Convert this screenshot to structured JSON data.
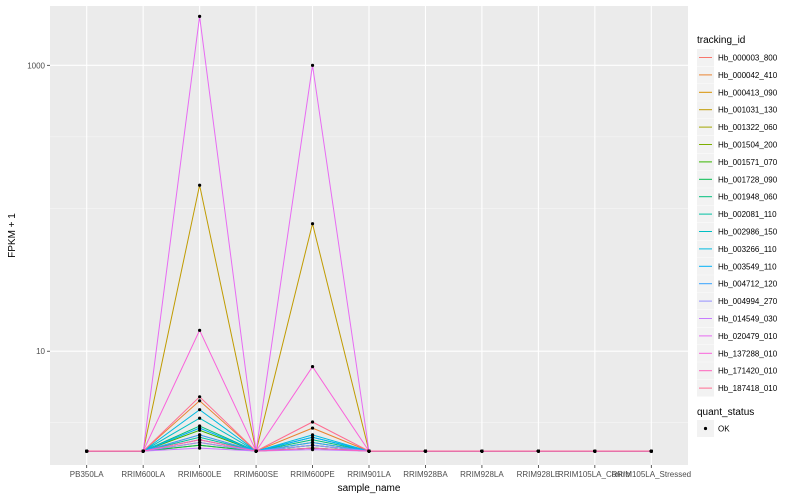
{
  "chart_data": {
    "type": "line",
    "title": "",
    "xlabel": "sample_name",
    "ylabel": "FPKM + 1",
    "y_scale": "log10",
    "ylim": [
      1.6,
      2600
    ],
    "grid": true,
    "legend_placement": "right",
    "categories": [
      "PB350LA",
      "RRIM600LA",
      "RRIM600LE",
      "RRIM600SE",
      "RRIM600PE",
      "RRIM901LA",
      "RRIM928BA",
      "RRIM928LA",
      "RRIM928LE",
      "RRIM105LA_Control",
      "RRIM105LA_Stressed"
    ],
    "y_ticks": [
      10,
      1000
    ],
    "y_tick_labels": [
      "10",
      "1000"
    ],
    "legend_title": "tracking_id",
    "status_legend_title": "quant_status",
    "status_legend_entries": [
      "OK"
    ],
    "series": [
      {
        "name": "Hb_000003_800",
        "color": "#F8766D",
        "values": [
          2,
          2,
          2.6,
          2,
          2.2,
          2,
          2,
          2,
          2,
          2,
          2
        ]
      },
      {
        "name": "Hb_000042_410",
        "color": "#EA8331",
        "values": [
          2,
          2,
          4.5,
          2,
          2.9,
          2,
          2,
          2,
          2,
          2,
          2
        ]
      },
      {
        "name": "Hb_000413_090",
        "color": "#D89000",
        "values": [
          2,
          2,
          2.3,
          2,
          2.1,
          2,
          2,
          2,
          2,
          2,
          2
        ]
      },
      {
        "name": "Hb_001031_130",
        "color": "#C09B00",
        "values": [
          2,
          2,
          145,
          2,
          78,
          2,
          2,
          2,
          2,
          2,
          2
        ]
      },
      {
        "name": "Hb_001322_060",
        "color": "#A3A500",
        "values": [
          2,
          2,
          2.2,
          2,
          2.1,
          2,
          2,
          2,
          2,
          2,
          2
        ]
      },
      {
        "name": "Hb_001504_200",
        "color": "#7CAE00",
        "values": [
          2,
          2,
          2.4,
          2,
          2.2,
          2,
          2,
          2,
          2,
          2,
          2
        ]
      },
      {
        "name": "Hb_001571_070",
        "color": "#39B600",
        "values": [
          2,
          2,
          2.8,
          2,
          2.3,
          2,
          2,
          2,
          2,
          2,
          2
        ]
      },
      {
        "name": "Hb_001728_090",
        "color": "#00BB4E",
        "values": [
          2,
          2,
          2.2,
          2,
          2.1,
          2,
          2,
          2,
          2,
          2,
          2
        ]
      },
      {
        "name": "Hb_001948_060",
        "color": "#00BF7D",
        "values": [
          2,
          2,
          3.0,
          2,
          2.4,
          2,
          2,
          2,
          2,
          2,
          2
        ]
      },
      {
        "name": "Hb_002081_110",
        "color": "#00C1A3",
        "values": [
          2,
          2,
          2.5,
          2,
          2.2,
          2,
          2,
          2,
          2,
          2,
          2
        ]
      },
      {
        "name": "Hb_002986_150",
        "color": "#00BFC4",
        "values": [
          2,
          2,
          3.4,
          2,
          2.5,
          2,
          2,
          2,
          2,
          2,
          2
        ]
      },
      {
        "name": "Hb_003266_110",
        "color": "#00BAE0",
        "values": [
          2,
          2,
          3.9,
          2,
          2.6,
          2,
          2,
          2,
          2,
          2,
          2
        ]
      },
      {
        "name": "Hb_003549_110",
        "color": "#00B0F6",
        "values": [
          2,
          2,
          2.9,
          2,
          2.5,
          2,
          2,
          2,
          2,
          2,
          2
        ]
      },
      {
        "name": "Hb_004712_120",
        "color": "#35A2FF",
        "values": [
          2,
          2,
          2.6,
          2,
          2.3,
          2,
          2,
          2,
          2,
          2,
          2
        ]
      },
      {
        "name": "Hb_004994_270",
        "color": "#9590FF",
        "values": [
          2,
          2,
          2.3,
          2,
          2.2,
          2,
          2,
          2,
          2,
          2,
          2
        ]
      },
      {
        "name": "Hb_014549_030",
        "color": "#C77CFF",
        "values": [
          2,
          2,
          2.1,
          2,
          2.05,
          2,
          2,
          2,
          2,
          2,
          2
        ]
      },
      {
        "name": "Hb_020479_010",
        "color": "#E76BF3",
        "values": [
          2,
          2,
          2200,
          2,
          1000,
          2,
          2,
          2,
          2,
          2,
          2
        ]
      },
      {
        "name": "Hb_137288_010",
        "color": "#FA62DB",
        "values": [
          2,
          2,
          14,
          2,
          7.8,
          2,
          2,
          2,
          2,
          2,
          2
        ]
      },
      {
        "name": "Hb_171420_010",
        "color": "#FF62BC",
        "values": [
          2,
          2,
          2.4,
          2,
          2.1,
          2,
          2,
          2,
          2,
          2,
          2
        ]
      },
      {
        "name": "Hb_187418_010",
        "color": "#FF6C91",
        "values": [
          2,
          2,
          4.8,
          2,
          3.2,
          2,
          2,
          2,
          2,
          2,
          2
        ]
      }
    ]
  }
}
